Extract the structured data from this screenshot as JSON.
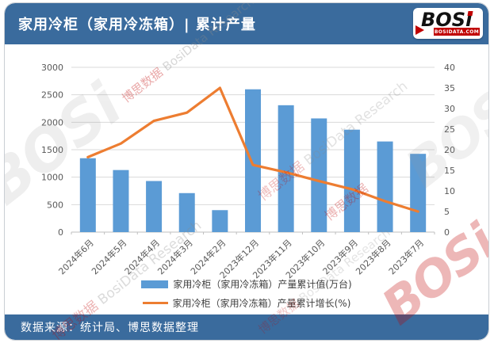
{
  "header": {
    "title": "家用冷柜（家用冷冻箱）| 累计产量",
    "logo": {
      "text": "BOSi",
      "domain": "BOSIDATA.COM"
    }
  },
  "footer": {
    "source": "数据来源：统计局、博思数据整理"
  },
  "watermark": {
    "cn": "博思数据",
    "en": "BosiData Research",
    "logo_text": "BOSi",
    "domain": "BOSIDATA.COM"
  },
  "colors": {
    "header_bg": "#3a6b9d",
    "bar": "#5b9bd5",
    "line": "#ed7d31",
    "grid": "#d9d9d9",
    "axis_line": "#bfbfbf",
    "axis_text": "#595959",
    "logo_red": "#c00000"
  },
  "chart_data": {
    "type": "bar",
    "title": "家用冷柜（家用冷冻箱）| 累计产量",
    "categories": [
      "2024年6月",
      "2024年5月",
      "2024年4月",
      "2024年3月",
      "2024年2月",
      "2023年12月",
      "2023年11月",
      "2023年10月",
      "2023年9月",
      "2023年8月",
      "2023年7月"
    ],
    "series": [
      {
        "name": "家用冷柜（家用冷冻箱）产量累计值(万台)",
        "type": "bar",
        "axis": "left",
        "color": "#5b9bd5",
        "values": [
          1345,
          1130,
          930,
          710,
          400,
          2600,
          2310,
          2070,
          1865,
          1650,
          1425
        ]
      },
      {
        "name": "家用冷柜（家用冷冻箱）产量累计增长(%)",
        "type": "line",
        "axis": "right",
        "color": "#ed7d31",
        "values": [
          18.2,
          21.5,
          27.0,
          29.0,
          35.0,
          16.3,
          14.5,
          12.4,
          10.4,
          7.5,
          5.0
        ]
      }
    ],
    "left_axis": {
      "min": 0,
      "max": 3000,
      "step": 500
    },
    "right_axis": {
      "min": 0,
      "max": 40,
      "step": 5
    },
    "xlabel": "",
    "ylabel": "",
    "grid": true,
    "legend_position": "bottom"
  }
}
